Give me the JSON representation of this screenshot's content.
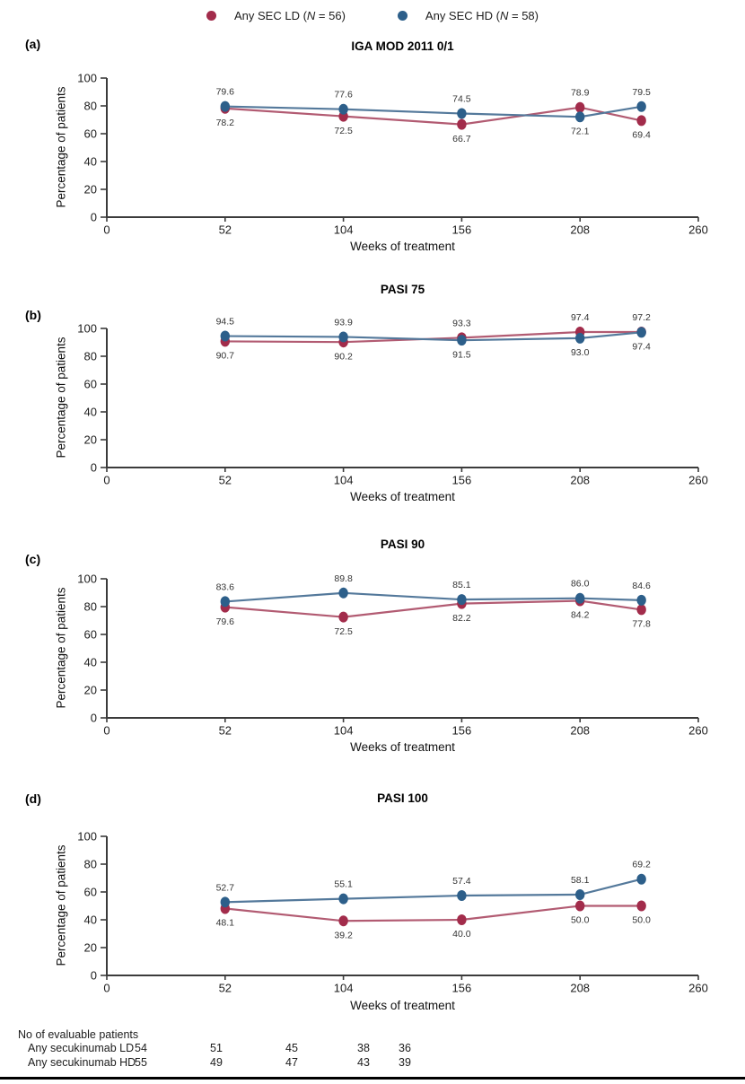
{
  "legend": {
    "items": [
      {
        "id": "any-sec-ld",
        "pre": "Any SEC LD (",
        "n": "N",
        "post": " = 56)",
        "color": "#A22C4B"
      },
      {
        "id": "any-sec-hd",
        "pre": "Any SEC HD (",
        "n": "N",
        "post": " = 58)",
        "color": "#2D5F8A"
      }
    ]
  },
  "chart_data": [
    {
      "type": "line",
      "panel_label": "(a)",
      "title": "IGA MOD 2011 0/1",
      "xlabel": "Weeks of treatment",
      "ylabel": "Percentage of patients",
      "xlim": [
        0,
        260
      ],
      "ylim": [
        0,
        100
      ],
      "xticks": [
        0,
        52,
        104,
        156,
        208,
        260
      ],
      "yticks": [
        0,
        20,
        40,
        60,
        80,
        100
      ],
      "x": [
        52,
        104,
        156,
        208,
        235
      ],
      "series": [
        {
          "name": "Any SEC LD",
          "color": "#A22C4B",
          "line_color": "#B25B72",
          "values": [
            78.2,
            72.5,
            66.7,
            78.9,
            69.4
          ],
          "labels": [
            "78.2",
            "72.5",
            "66.7",
            "78.9",
            "69.4"
          ],
          "label_side": [
            "below",
            "below",
            "below",
            "above",
            "below"
          ]
        },
        {
          "name": "Any SEC HD",
          "color": "#2D5F8A",
          "line_color": "#54799B",
          "values": [
            79.6,
            77.6,
            74.5,
            72.1,
            79.5
          ],
          "labels": [
            "79.6",
            "77.6",
            "74.5",
            "72.1",
            "79.5"
          ],
          "label_side": [
            "above",
            "above",
            "above",
            "below",
            "above"
          ]
        }
      ]
    },
    {
      "type": "line",
      "panel_label": "(b)",
      "title": "PASI 75",
      "xlabel": "Weeks of treatment",
      "ylabel": "Percentage of patients",
      "xlim": [
        0,
        260
      ],
      "ylim": [
        0,
        100
      ],
      "xticks": [
        0,
        52,
        104,
        156,
        208,
        260
      ],
      "yticks": [
        0,
        20,
        40,
        60,
        80,
        100
      ],
      "x": [
        52,
        104,
        156,
        208,
        235
      ],
      "series": [
        {
          "name": "Any SEC LD",
          "color": "#A22C4B",
          "line_color": "#B25B72",
          "values": [
            90.7,
            90.2,
            93.3,
            97.4,
            97.4
          ],
          "labels": [
            "90.7",
            "90.2",
            "93.3",
            "97.4",
            "97.4"
          ],
          "label_side": [
            "below",
            "below",
            "above",
            "above",
            "below"
          ]
        },
        {
          "name": "Any SEC HD",
          "color": "#2D5F8A",
          "line_color": "#54799B",
          "values": [
            94.5,
            93.9,
            91.5,
            93.0,
            97.2
          ],
          "labels": [
            "94.5",
            "93.9",
            "91.5",
            "93.0",
            "97.2"
          ],
          "label_side": [
            "above",
            "above",
            "below",
            "below",
            "above"
          ]
        }
      ]
    },
    {
      "type": "line",
      "panel_label": "(c)",
      "title": "PASI 90",
      "xlabel": "Weeks of treatment",
      "ylabel": "Percentage of patients",
      "xlim": [
        0,
        260
      ],
      "ylim": [
        0,
        100
      ],
      "xticks": [
        0,
        52,
        104,
        156,
        208,
        260
      ],
      "yticks": [
        0,
        20,
        40,
        60,
        80,
        100
      ],
      "x": [
        52,
        104,
        156,
        208,
        235
      ],
      "series": [
        {
          "name": "Any SEC LD",
          "color": "#A22C4B",
          "line_color": "#B25B72",
          "values": [
            79.6,
            72.5,
            82.2,
            84.2,
            77.8
          ],
          "labels": [
            "79.6",
            "72.5",
            "82.2",
            "84.2",
            "77.8"
          ],
          "label_side": [
            "below",
            "below",
            "below",
            "below",
            "below"
          ]
        },
        {
          "name": "Any SEC HD",
          "color": "#2D5F8A",
          "line_color": "#54799B",
          "values": [
            83.6,
            89.8,
            85.1,
            86.0,
            84.6
          ],
          "labels": [
            "83.6",
            "89.8",
            "85.1",
            "86.0",
            "84.6"
          ],
          "label_side": [
            "above",
            "above",
            "above",
            "above",
            "above"
          ]
        }
      ]
    },
    {
      "type": "line",
      "panel_label": "(d)",
      "title": "PASI 100",
      "xlabel": "Weeks of treatment",
      "ylabel": "Percentage of patients",
      "xlim": [
        0,
        260
      ],
      "ylim": [
        0,
        100
      ],
      "xticks": [
        0,
        52,
        104,
        156,
        208,
        260
      ],
      "yticks": [
        0,
        20,
        40,
        60,
        80,
        100
      ],
      "x": [
        52,
        104,
        156,
        208,
        235
      ],
      "series": [
        {
          "name": "Any SEC LD",
          "color": "#A22C4B",
          "line_color": "#B25B72",
          "values": [
            48.1,
            39.2,
            40.0,
            50.0,
            50.0
          ],
          "labels": [
            "48.1",
            "39.2",
            "40.0",
            "50.0",
            "50.0"
          ],
          "label_side": [
            "below",
            "below",
            "below",
            "below",
            "below"
          ]
        },
        {
          "name": "Any SEC HD",
          "color": "#2D5F8A",
          "line_color": "#54799B",
          "values": [
            52.7,
            55.1,
            57.4,
            58.1,
            69.2
          ],
          "labels": [
            "52.7",
            "55.1",
            "57.4",
            "58.1",
            "69.2"
          ],
          "label_side": [
            "above",
            "above",
            "above",
            "above",
            "above"
          ]
        }
      ]
    }
  ],
  "evaluable_table": {
    "header": "No of evaluable patients",
    "rows": [
      {
        "label": "Any secukinumab LD",
        "values": [
          "54",
          "51",
          "45",
          "38",
          "36"
        ]
      },
      {
        "label": "Any secukinumab HD",
        "values": [
          "55",
          "49",
          "47",
          "43",
          "39"
        ]
      }
    ]
  }
}
